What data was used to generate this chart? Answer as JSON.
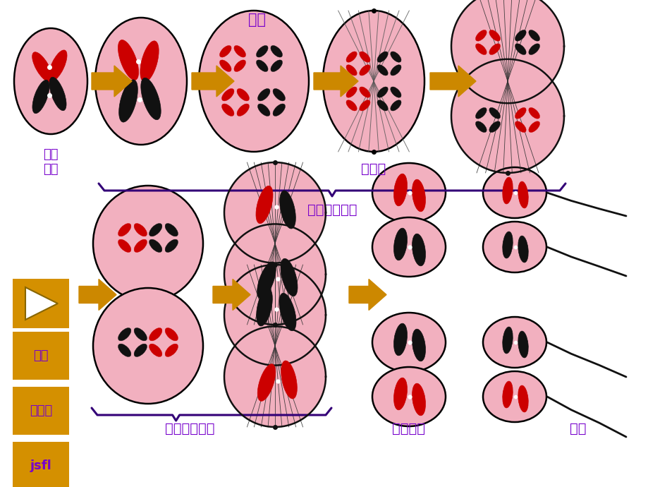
{
  "bg_color": "#ffffff",
  "pink": "#f2b0bf",
  "pink_edge": "#111111",
  "red": "#cc0000",
  "blk": "#111111",
  "arr_color": "#cc8800",
  "lbl_color": "#7700cc",
  "orn": "#d49000",
  "lian_hui": "联会",
  "si_fen_ti": "四分体",
  "chu_ji": "初级精母细胞",
  "ci_ji": "次级精母细胞",
  "jing_zi_xb": "精子细胞",
  "jing_zi": "精子",
  "jing_yuan": "精原\n细胞",
  "jsfl": "jsfl"
}
